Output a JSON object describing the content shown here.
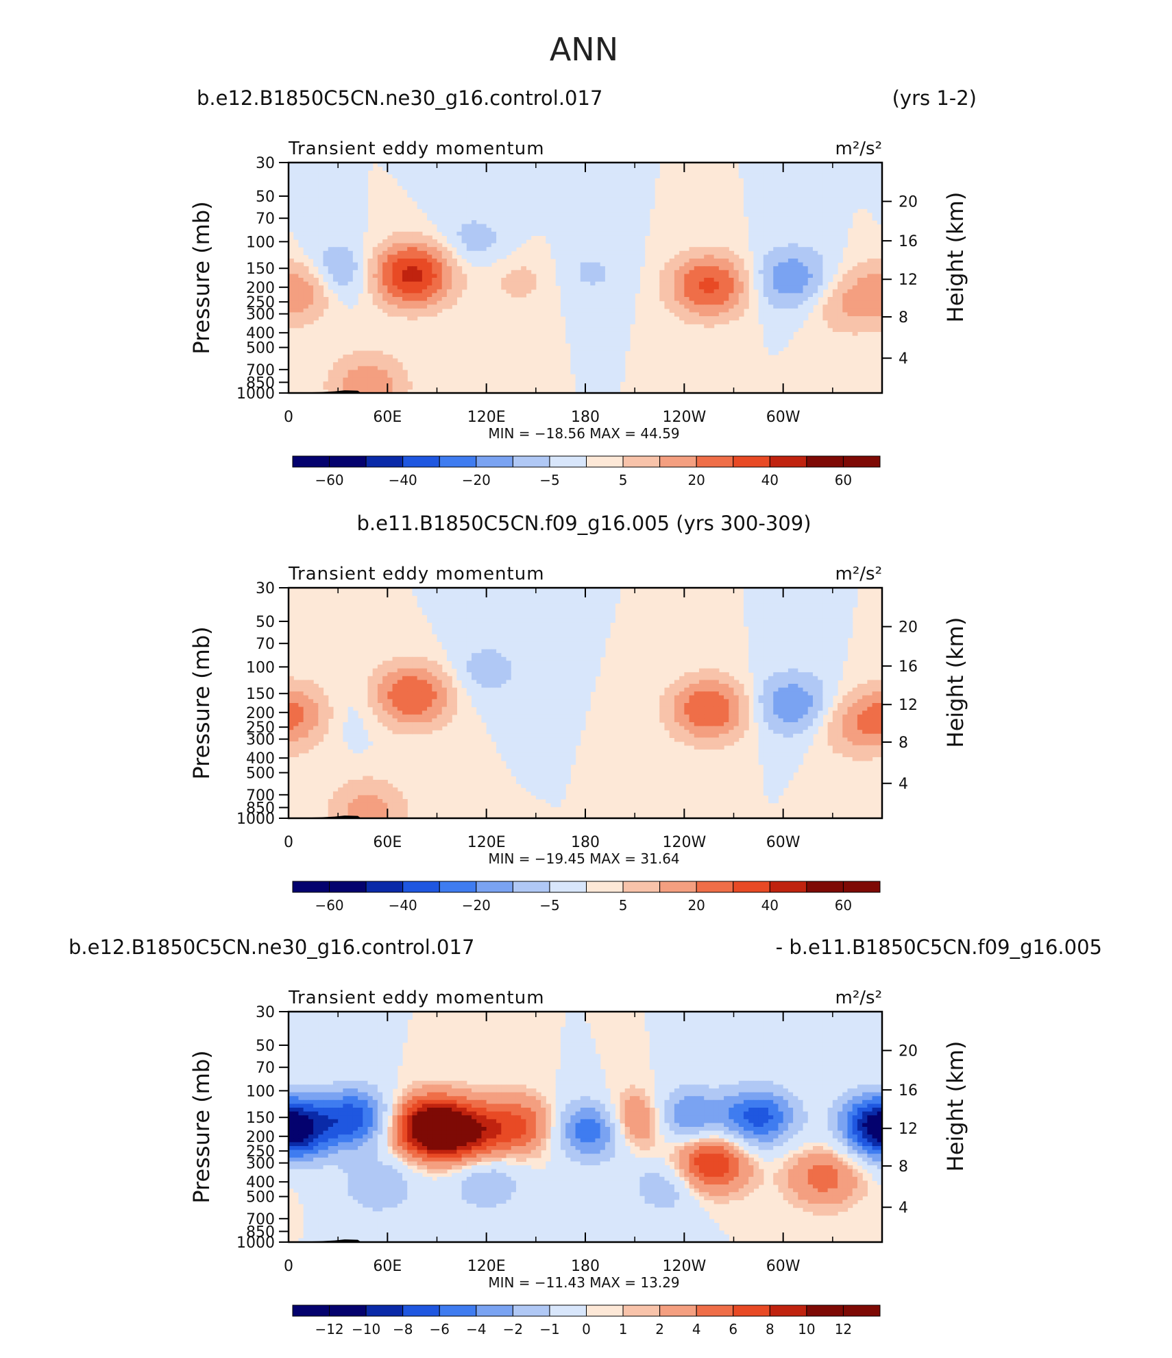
{
  "page_title": "ANN",
  "chart_data": [
    {
      "type": "heatmap",
      "header_left": "b.e12.B1850C5CN.ne30_g16.control.017",
      "header_center": "",
      "header_right": "(yrs 1-2)",
      "title": "Transient eddy momentum",
      "units": "m²/s²",
      "ylabel_left": "Pressure  (mb)",
      "ylabel_right": "Height  (km)",
      "p_ticks": [
        "30",
        "50",
        "70",
        "100",
        "150",
        "200",
        "250",
        "300",
        "400",
        "500",
        "700",
        "850",
        "1000"
      ],
      "h_ticks": [
        "20",
        "16",
        "12",
        "8",
        "4"
      ],
      "x_ticks": [
        "0",
        "60E",
        "120E",
        "180",
        "120W",
        "60W"
      ],
      "min_max": "MIN = −18.56   MAX =   44.59",
      "colorbar_labels": [
        "−60",
        "−40",
        "−20",
        "−5",
        "5",
        "20",
        "40",
        "60"
      ],
      "blobs": [
        {
          "lon": 75,
          "p": 165,
          "amp": 44
        },
        {
          "lon": 255,
          "p": 195,
          "amp": 32
        },
        {
          "lon": 8,
          "p": 200,
          "amp": 20
        },
        {
          "lon": 28,
          "p": 160,
          "amp": -15
        },
        {
          "lon": 305,
          "p": 175,
          "amp": -18
        },
        {
          "lon": 112,
          "p": 100,
          "amp": -8
        },
        {
          "lon": 183,
          "p": 160,
          "amp": -6
        },
        {
          "lon": 140,
          "p": 180,
          "amp": 7
        },
        {
          "lon": 340,
          "p": 260,
          "amp": 12
        },
        {
          "lon": 48,
          "p": 880,
          "amp": 18
        }
      ]
    },
    {
      "type": "heatmap",
      "header_left": "",
      "header_center": "b.e11.B1850C5CN.f09_g16.005 (yrs 300-309)",
      "header_right": "",
      "title": "Transient eddy momentum",
      "units": "m²/s²",
      "ylabel_left": "Pressure  (mb)",
      "ylabel_right": "Height  (km)",
      "p_ticks": [
        "30",
        "50",
        "70",
        "100",
        "150",
        "200",
        "250",
        "300",
        "400",
        "500",
        "700",
        "850",
        "1000"
      ],
      "h_ticks": [
        "20",
        "16",
        "12",
        "8",
        "4"
      ],
      "x_ticks": [
        "0",
        "60E",
        "120E",
        "180",
        "120W",
        "60W"
      ],
      "min_max": "MIN = −19.45   MAX =   31.64",
      "colorbar_labels": [
        "−60",
        "−40",
        "−20",
        "−5",
        "5",
        "20",
        "40",
        "60"
      ],
      "blobs": [
        {
          "lon": 75,
          "p": 155,
          "amp": 30
        },
        {
          "lon": 255,
          "p": 190,
          "amp": 30
        },
        {
          "lon": 5,
          "p": 200,
          "amp": 18
        },
        {
          "lon": 305,
          "p": 175,
          "amp": -18
        },
        {
          "lon": 120,
          "p": 105,
          "amp": -8
        },
        {
          "lon": 35,
          "p": 200,
          "amp": -4
        },
        {
          "lon": 345,
          "p": 250,
          "amp": 14
        },
        {
          "lon": 48,
          "p": 880,
          "amp": 16
        }
      ]
    },
    {
      "type": "heatmap",
      "header_left": "b.e12.B1850C5CN.ne30_g16.control.017",
      "header_center": "",
      "header_right": "- b.e11.B1850C5CN.f09_g16.005",
      "title": "Transient eddy momentum",
      "units": "m²/s²",
      "ylabel_left": "Pressure  (mb)",
      "ylabel_right": "Height  (km)",
      "p_ticks": [
        "30",
        "50",
        "70",
        "100",
        "150",
        "200",
        "250",
        "300",
        "400",
        "500",
        "700",
        "850",
        "1000"
      ],
      "h_ticks": [
        "20",
        "16",
        "12",
        "8",
        "4"
      ],
      "x_ticks": [
        "0",
        "60E",
        "120E",
        "180",
        "120W",
        "60W"
      ],
      "min_max": "MIN = −11.43   MAX =   13.29",
      "colorbar_labels": [
        "−12",
        "−10",
        "−8",
        "−6",
        "−4",
        "−2",
        "−1",
        "0",
        "1",
        "2",
        "4",
        "6",
        "8",
        "10",
        "12"
      ],
      "blobs": [
        {
          "lon": 85,
          "p": 175,
          "amp": 13
        },
        {
          "lon": 108,
          "p": 190,
          "amp": 8
        },
        {
          "lon": 140,
          "p": 170,
          "amp": 6
        },
        {
          "lon": 210,
          "p": 160,
          "amp": 7
        },
        {
          "lon": 255,
          "p": 300,
          "amp": 9
        },
        {
          "lon": 325,
          "p": 370,
          "amp": 5
        },
        {
          "lon": 5,
          "p": 190,
          "amp": -8
        },
        {
          "lon": 40,
          "p": 150,
          "amp": -9
        },
        {
          "lon": 185,
          "p": 180,
          "amp": -9
        },
        {
          "lon": 240,
          "p": 150,
          "amp": -7
        },
        {
          "lon": 285,
          "p": 150,
          "amp": -9
        },
        {
          "lon": 355,
          "p": 160,
          "amp": -8
        },
        {
          "lon": 55,
          "p": 420,
          "amp": -4
        },
        {
          "lon": 120,
          "p": 400,
          "amp": -4
        },
        {
          "lon": 230,
          "p": 420,
          "amp": -4
        }
      ]
    }
  ]
}
